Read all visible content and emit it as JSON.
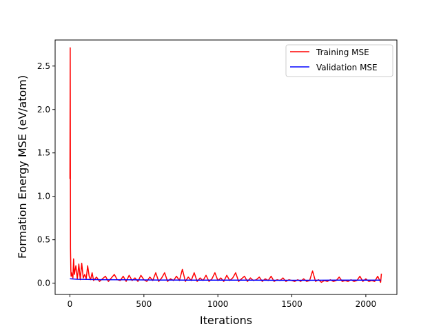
{
  "chart_data": {
    "type": "line",
    "title": "",
    "xlabel": "Iterations",
    "ylabel": "Formation Energy MSE (eV/atom)",
    "xlim": [
      -100,
      2210
    ],
    "ylim": [
      -0.13,
      2.8
    ],
    "x_ticks": [
      0,
      500,
      1000,
      1500,
      2000
    ],
    "x_tick_labels": [
      "0",
      "500",
      "1000",
      "1500",
      "2000"
    ],
    "y_ticks": [
      0.0,
      0.5,
      1.0,
      1.5,
      2.0,
      2.5
    ],
    "y_tick_labels": [
      "0.0",
      "0.5",
      "1.0",
      "1.5",
      "2.0",
      "2.5"
    ],
    "grid": false,
    "legend_position": "top-right",
    "series": [
      {
        "name": "Training MSE",
        "color": "#ff0000",
        "x": [
          0,
          2,
          4,
          6,
          8,
          12,
          20,
          25,
          30,
          40,
          50,
          60,
          70,
          80,
          90,
          100,
          110,
          120,
          130,
          140,
          150,
          160,
          180,
          200,
          220,
          240,
          260,
          280,
          300,
          320,
          340,
          360,
          380,
          400,
          420,
          440,
          460,
          480,
          500,
          520,
          540,
          560,
          580,
          600,
          620,
          640,
          660,
          680,
          700,
          720,
          740,
          760,
          780,
          800,
          820,
          840,
          860,
          880,
          900,
          920,
          940,
          960,
          980,
          1000,
          1020,
          1040,
          1060,
          1080,
          1100,
          1120,
          1140,
          1160,
          1180,
          1200,
          1220,
          1240,
          1260,
          1280,
          1300,
          1320,
          1340,
          1360,
          1380,
          1400,
          1420,
          1440,
          1460,
          1480,
          1500,
          1520,
          1540,
          1560,
          1580,
          1600,
          1620,
          1640,
          1660,
          1680,
          1700,
          1720,
          1740,
          1760,
          1780,
          1800,
          1820,
          1840,
          1860,
          1880,
          1900,
          1920,
          1940,
          1960,
          1980,
          2000,
          2020,
          2040,
          2060,
          2080,
          2100,
          2105
        ],
        "y": [
          1.2,
          2.71,
          0.4,
          0.15,
          0.08,
          0.12,
          0.06,
          0.28,
          0.1,
          0.2,
          0.05,
          0.22,
          0.04,
          0.23,
          0.06,
          0.1,
          0.05,
          0.2,
          0.08,
          0.04,
          0.12,
          0.03,
          0.07,
          0.02,
          0.05,
          0.08,
          0.02,
          0.06,
          0.1,
          0.04,
          0.03,
          0.08,
          0.02,
          0.09,
          0.03,
          0.06,
          0.02,
          0.09,
          0.04,
          0.02,
          0.07,
          0.03,
          0.12,
          0.02,
          0.06,
          0.12,
          0.02,
          0.05,
          0.03,
          0.08,
          0.03,
          0.16,
          0.02,
          0.07,
          0.03,
          0.12,
          0.02,
          0.06,
          0.03,
          0.09,
          0.02,
          0.05,
          0.12,
          0.03,
          0.06,
          0.02,
          0.09,
          0.03,
          0.06,
          0.12,
          0.02,
          0.05,
          0.08,
          0.02,
          0.06,
          0.03,
          0.04,
          0.07,
          0.02,
          0.05,
          0.03,
          0.08,
          0.02,
          0.04,
          0.03,
          0.06,
          0.02,
          0.04,
          0.03,
          0.02,
          0.04,
          0.02,
          0.05,
          0.02,
          0.03,
          0.14,
          0.02,
          0.04,
          0.01,
          0.03,
          0.02,
          0.04,
          0.02,
          0.03,
          0.07,
          0.02,
          0.03,
          0.02,
          0.04,
          0.02,
          0.03,
          0.08,
          0.02,
          0.05,
          0.02,
          0.03,
          0.02,
          0.08,
          0.01,
          0.11
        ]
      },
      {
        "name": "Validation MSE",
        "color": "#0000ff",
        "x": [
          0,
          50,
          200,
          400,
          600,
          800,
          1000,
          1200,
          1400,
          1600,
          1800,
          2000,
          2100
        ],
        "y": [
          0.05,
          0.045,
          0.04,
          0.038,
          0.036,
          0.035,
          0.034,
          0.034,
          0.033,
          0.033,
          0.034,
          0.035,
          0.035
        ]
      }
    ]
  }
}
